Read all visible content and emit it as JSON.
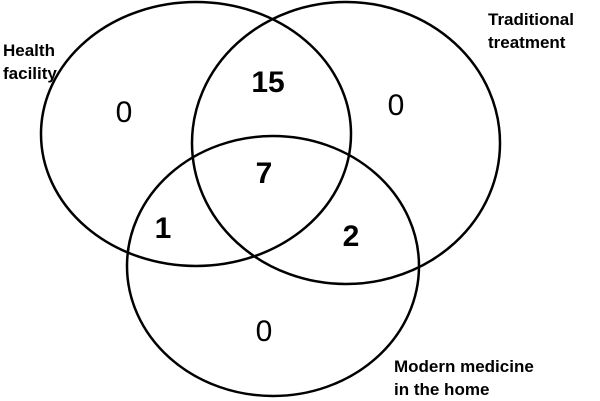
{
  "sets": {
    "health_facility": {
      "line1": "Health",
      "line2": "facility"
    },
    "traditional_treatment": {
      "line1": "Traditional",
      "line2": "treatment"
    },
    "modern_medicine": {
      "line1": "Modern medicine",
      "line2": "in the home"
    }
  },
  "regions": {
    "health_facility_only": "0",
    "traditional_only": "0",
    "modern_only": "0",
    "health_and_traditional": "15",
    "health_and_modern": "1",
    "traditional_and_modern": "2",
    "all_three": "7"
  },
  "colors": {
    "stroke": "#000000",
    "background": "#ffffff"
  }
}
